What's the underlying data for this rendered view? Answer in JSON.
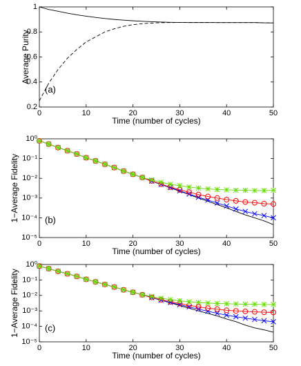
{
  "chart_data": [
    {
      "type": "line",
      "ylabel": "Average Purity",
      "xlabel": "Time (number of cycles)",
      "annotation": "(a)",
      "xlim": [
        0,
        50
      ],
      "xticks": [
        0,
        10,
        20,
        30,
        40,
        50
      ],
      "ylim": [
        0.2,
        1
      ],
      "yticks": [
        0.2,
        0.4,
        0.6,
        0.8,
        1
      ],
      "log_y": false,
      "x": [
        0,
        2,
        4,
        6,
        8,
        10,
        12,
        14,
        16,
        18,
        20,
        22,
        24,
        26,
        28,
        30,
        32,
        34,
        36,
        38,
        40,
        42,
        44,
        46,
        48,
        50
      ],
      "series": [
        {
          "color": "#000000",
          "dash": false,
          "marker": null,
          "values": [
            1.0,
            0.98,
            0.965,
            0.95,
            0.937,
            0.926,
            0.916,
            0.907,
            0.9,
            0.894,
            0.889,
            0.885,
            0.882,
            0.879,
            0.877,
            0.876,
            0.875,
            0.875,
            0.875,
            0.875,
            0.875,
            0.875,
            0.875,
            0.875,
            0.873,
            0.872
          ]
        },
        {
          "color": "#000000",
          "dash": true,
          "marker": null,
          "values": [
            0.25,
            0.39,
            0.5,
            0.59,
            0.66,
            0.72,
            0.76,
            0.8,
            0.825,
            0.845,
            0.858,
            0.866,
            0.871,
            0.874,
            0.875,
            0.876,
            0.876,
            0.876,
            0.876,
            0.875,
            0.875,
            0.875,
            0.875,
            0.875,
            0.873,
            0.872
          ]
        }
      ]
    },
    {
      "type": "line",
      "ylabel": "1−Average Fidelity",
      "xlabel": "Time (number of cycles)",
      "annotation": "(b)",
      "xlim": [
        0,
        50
      ],
      "xticks": [
        0,
        10,
        20,
        30,
        40,
        50
      ],
      "ylim": [
        1e-05,
        1
      ],
      "log_y": true,
      "yticks": [
        {
          "value": 1e-05,
          "label": "10⁻⁵"
        },
        {
          "value": 0.0001,
          "label": "10⁻⁴"
        },
        {
          "value": 0.001,
          "label": "10⁻³"
        },
        {
          "value": 0.01,
          "label": "10⁻²"
        },
        {
          "value": 0.1,
          "label": "10⁻¹"
        },
        {
          "value": 1,
          "label": "10⁰"
        }
      ],
      "x": [
        0,
        2,
        4,
        6,
        8,
        10,
        12,
        14,
        16,
        18,
        20,
        22,
        24,
        26,
        28,
        30,
        32,
        34,
        36,
        38,
        40,
        42,
        44,
        46,
        48,
        50
      ],
      "series": [
        {
          "color": "#000000",
          "dash": false,
          "marker": null,
          "values": [
            0.79,
            0.54,
            0.36,
            0.25,
            0.17,
            0.11,
            0.076,
            0.051,
            0.035,
            0.023,
            0.016,
            0.011,
            0.0072,
            0.0049,
            0.0033,
            0.0022,
            0.0015,
            0.001,
            0.00069,
            0.00047,
            0.00032,
            0.00021,
            0.00014,
            0.0001,
            7e-05,
            4.5e-05
          ]
        },
        {
          "color": "#0000ff",
          "dash": false,
          "marker": "x",
          "values": [
            0.79,
            0.54,
            0.36,
            0.25,
            0.17,
            0.11,
            0.076,
            0.051,
            0.035,
            0.023,
            0.016,
            0.011,
            0.0072,
            0.0049,
            0.0034,
            0.0023,
            0.0016,
            0.0011,
            0.00079,
            0.00056,
            0.0004,
            0.00028,
            0.00021,
            0.00016,
            0.00013,
            0.0001
          ]
        },
        {
          "color": "#ff0000",
          "dash": false,
          "marker": "o",
          "values": [
            0.79,
            0.54,
            0.36,
            0.25,
            0.17,
            0.11,
            0.076,
            0.051,
            0.035,
            0.023,
            0.016,
            0.011,
            0.0074,
            0.0051,
            0.0036,
            0.0026,
            0.002,
            0.0015,
            0.0012,
            0.001,
            0.00083,
            0.00072,
            0.00063,
            0.00058,
            0.00052,
            0.0005
          ]
        },
        {
          "color": "#66dd00",
          "dash": false,
          "marker": "*",
          "values": [
            0.79,
            0.54,
            0.36,
            0.25,
            0.17,
            0.11,
            0.076,
            0.051,
            0.035,
            0.023,
            0.016,
            0.011,
            0.0083,
            0.0063,
            0.005,
            0.0042,
            0.0036,
            0.0032,
            0.0029,
            0.0027,
            0.0026,
            0.0025,
            0.0025,
            0.0024,
            0.0024,
            0.0025
          ]
        }
      ]
    },
    {
      "type": "line",
      "ylabel": "1−Average Fidelity",
      "xlabel": "Time (number of cycles)",
      "annotation": "(c)",
      "xlim": [
        0,
        50
      ],
      "xticks": [
        0,
        10,
        20,
        30,
        40,
        50
      ],
      "ylim": [
        1e-05,
        1
      ],
      "log_y": true,
      "yticks": [
        {
          "value": 1e-05,
          "label": "10⁻⁵"
        },
        {
          "value": 0.0001,
          "label": "10⁻⁴"
        },
        {
          "value": 0.001,
          "label": "10⁻³"
        },
        {
          "value": 0.01,
          "label": "10⁻²"
        },
        {
          "value": 0.1,
          "label": "10⁻¹"
        },
        {
          "value": 1,
          "label": "10⁰"
        }
      ],
      "x": [
        0,
        2,
        4,
        6,
        8,
        10,
        12,
        14,
        16,
        18,
        20,
        22,
        24,
        26,
        28,
        30,
        32,
        34,
        36,
        38,
        40,
        42,
        44,
        46,
        48,
        50
      ],
      "series": [
        {
          "color": "#000000",
          "dash": false,
          "marker": null,
          "values": [
            0.79,
            0.54,
            0.36,
            0.25,
            0.17,
            0.11,
            0.076,
            0.051,
            0.035,
            0.023,
            0.016,
            0.011,
            0.0072,
            0.0049,
            0.0033,
            0.0022,
            0.0015,
            0.001,
            0.00069,
            0.00047,
            0.0003,
            0.0002,
            0.00012,
            8e-05,
            6e-05,
            4.2e-05
          ]
        },
        {
          "color": "#0000ff",
          "dash": false,
          "marker": "x",
          "values": [
            0.79,
            0.54,
            0.36,
            0.25,
            0.17,
            0.11,
            0.076,
            0.051,
            0.035,
            0.023,
            0.016,
            0.011,
            0.0072,
            0.0049,
            0.0035,
            0.0025,
            0.0018,
            0.0013,
            0.00095,
            0.0007,
            0.00053,
            0.00042,
            0.00034,
            0.00028,
            0.00023,
            0.0002
          ]
        },
        {
          "color": "#ff0000",
          "dash": false,
          "marker": "o",
          "values": [
            0.79,
            0.54,
            0.36,
            0.25,
            0.17,
            0.11,
            0.076,
            0.051,
            0.035,
            0.023,
            0.016,
            0.011,
            0.0075,
            0.0053,
            0.0039,
            0.003,
            0.0023,
            0.0018,
            0.0015,
            0.0013,
            0.0011,
            0.001,
            0.00093,
            0.00087,
            0.00082,
            0.0008
          ]
        },
        {
          "color": "#66dd00",
          "dash": false,
          "marker": "*",
          "values": [
            0.79,
            0.54,
            0.36,
            0.25,
            0.17,
            0.11,
            0.076,
            0.051,
            0.035,
            0.023,
            0.016,
            0.011,
            0.0085,
            0.0066,
            0.0054,
            0.0045,
            0.0039,
            0.0035,
            0.0032,
            0.003,
            0.0029,
            0.0028,
            0.0027,
            0.0027,
            0.0026,
            0.0026
          ]
        }
      ]
    }
  ]
}
